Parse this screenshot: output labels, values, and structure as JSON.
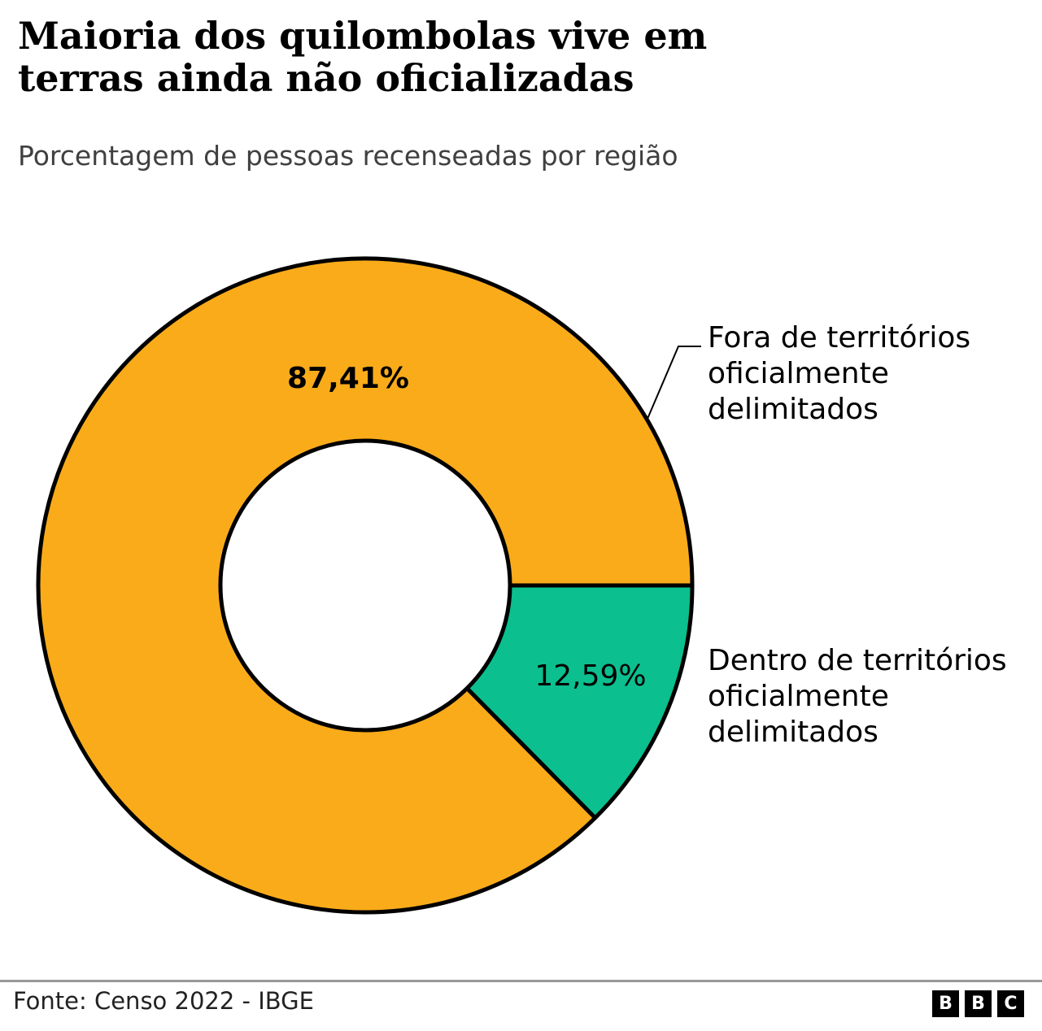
{
  "chart_data": {
    "type": "pie",
    "donut": true,
    "title": "Maioria dos quilombolas vive em terras ainda não oficializadas",
    "subtitle": "Porcentagem de pessoas recenseadas por região",
    "slices": [
      {
        "label": "Dentro de territórios oficialmente delimitados",
        "label_lines": [
          "Dentro de territórios",
          "oficialmente",
          "delimitados"
        ],
        "value": 12.59,
        "value_label": "12,59%",
        "color": "#0bbf8f"
      },
      {
        "label": "Fora de territórios oficialmente delimitados",
        "label_lines": [
          "Fora de territórios",
          "oficialmente",
          "delimitados"
        ],
        "value": 87.41,
        "value_label": "87,41%",
        "color": "#f9ab1a"
      }
    ]
  },
  "footer": {
    "source": "Fonte: Censo 2022 - IBGE",
    "logo": [
      "B",
      "B",
      "C"
    ]
  }
}
